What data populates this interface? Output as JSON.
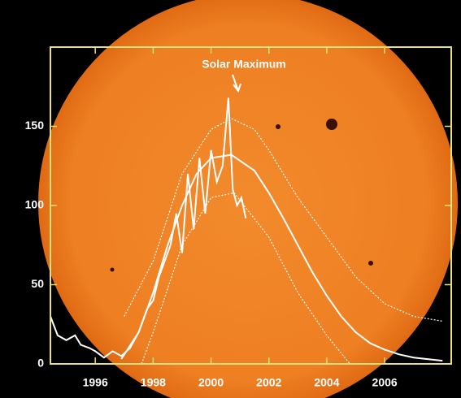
{
  "chart_data": {
    "type": "line",
    "annotation": "Solar Maximum",
    "xlim": [
      1994.45,
      2008.3
    ],
    "ylim": [
      0,
      200
    ],
    "xticks": [
      1996,
      1998,
      2000,
      2002,
      2004,
      2006
    ],
    "yticks": [
      0,
      50,
      100,
      150
    ],
    "frame_color": "#e8e27a",
    "series": [
      {
        "color": "#ffffff",
        "dashed": false,
        "x": [
          1994.45,
          1994.7,
          1995,
          1995.3,
          1995.5,
          1995.8,
          1996,
          1996.3,
          1996.6,
          1996.9,
          1997.2,
          1997.5,
          1997.8,
          1998,
          1998.2,
          1998.4,
          1998.6,
          1998.8,
          1999,
          1999.2,
          1999.4,
          1999.6,
          1999.8,
          2000,
          2000.2,
          2000.4,
          2000.6,
          2000.75,
          2000.9,
          2001.05,
          2001.2
        ],
        "values": [
          30,
          18,
          15,
          18,
          12,
          10,
          8,
          4,
          8,
          5,
          10,
          20,
          35,
          40,
          55,
          65,
          75,
          95,
          70,
          120,
          85,
          130,
          95,
          135,
          115,
          125,
          168,
          110,
          100,
          105,
          92
        ]
      },
      {
        "color": "#ffffff",
        "dashed": false,
        "x": [
          1996.9,
          1997.5,
          1998,
          1998.5,
          1999,
          1999.5,
          2000,
          2000.7,
          2001.5,
          2002,
          2002.5,
          2003,
          2003.5,
          2004,
          2004.5,
          2005,
          2005.5,
          2006,
          2006.5,
          2007,
          2008
        ],
        "values": [
          3,
          20,
          45,
          75,
          100,
          120,
          130,
          132,
          122,
          108,
          92,
          75,
          58,
          43,
          30,
          20,
          13,
          9,
          6,
          4,
          2
        ]
      },
      {
        "color": "#ffffff",
        "dashed": true,
        "x": [
          1997,
          1998,
          1999,
          2000,
          2000.7,
          2001.5,
          2002,
          2003,
          2004,
          2005,
          2006,
          2007,
          2008
        ],
        "values": [
          30,
          65,
          120,
          148,
          155,
          148,
          135,
          105,
          80,
          55,
          38,
          30,
          27
        ]
      },
      {
        "color": "#ffffff",
        "dashed": true,
        "x": [
          1997.6,
          1998,
          1999,
          2000,
          2000.8,
          2002,
          2003,
          2004,
          2004.8
        ],
        "values": [
          0,
          20,
          75,
          105,
          108,
          80,
          45,
          18,
          0
        ]
      }
    ]
  }
}
